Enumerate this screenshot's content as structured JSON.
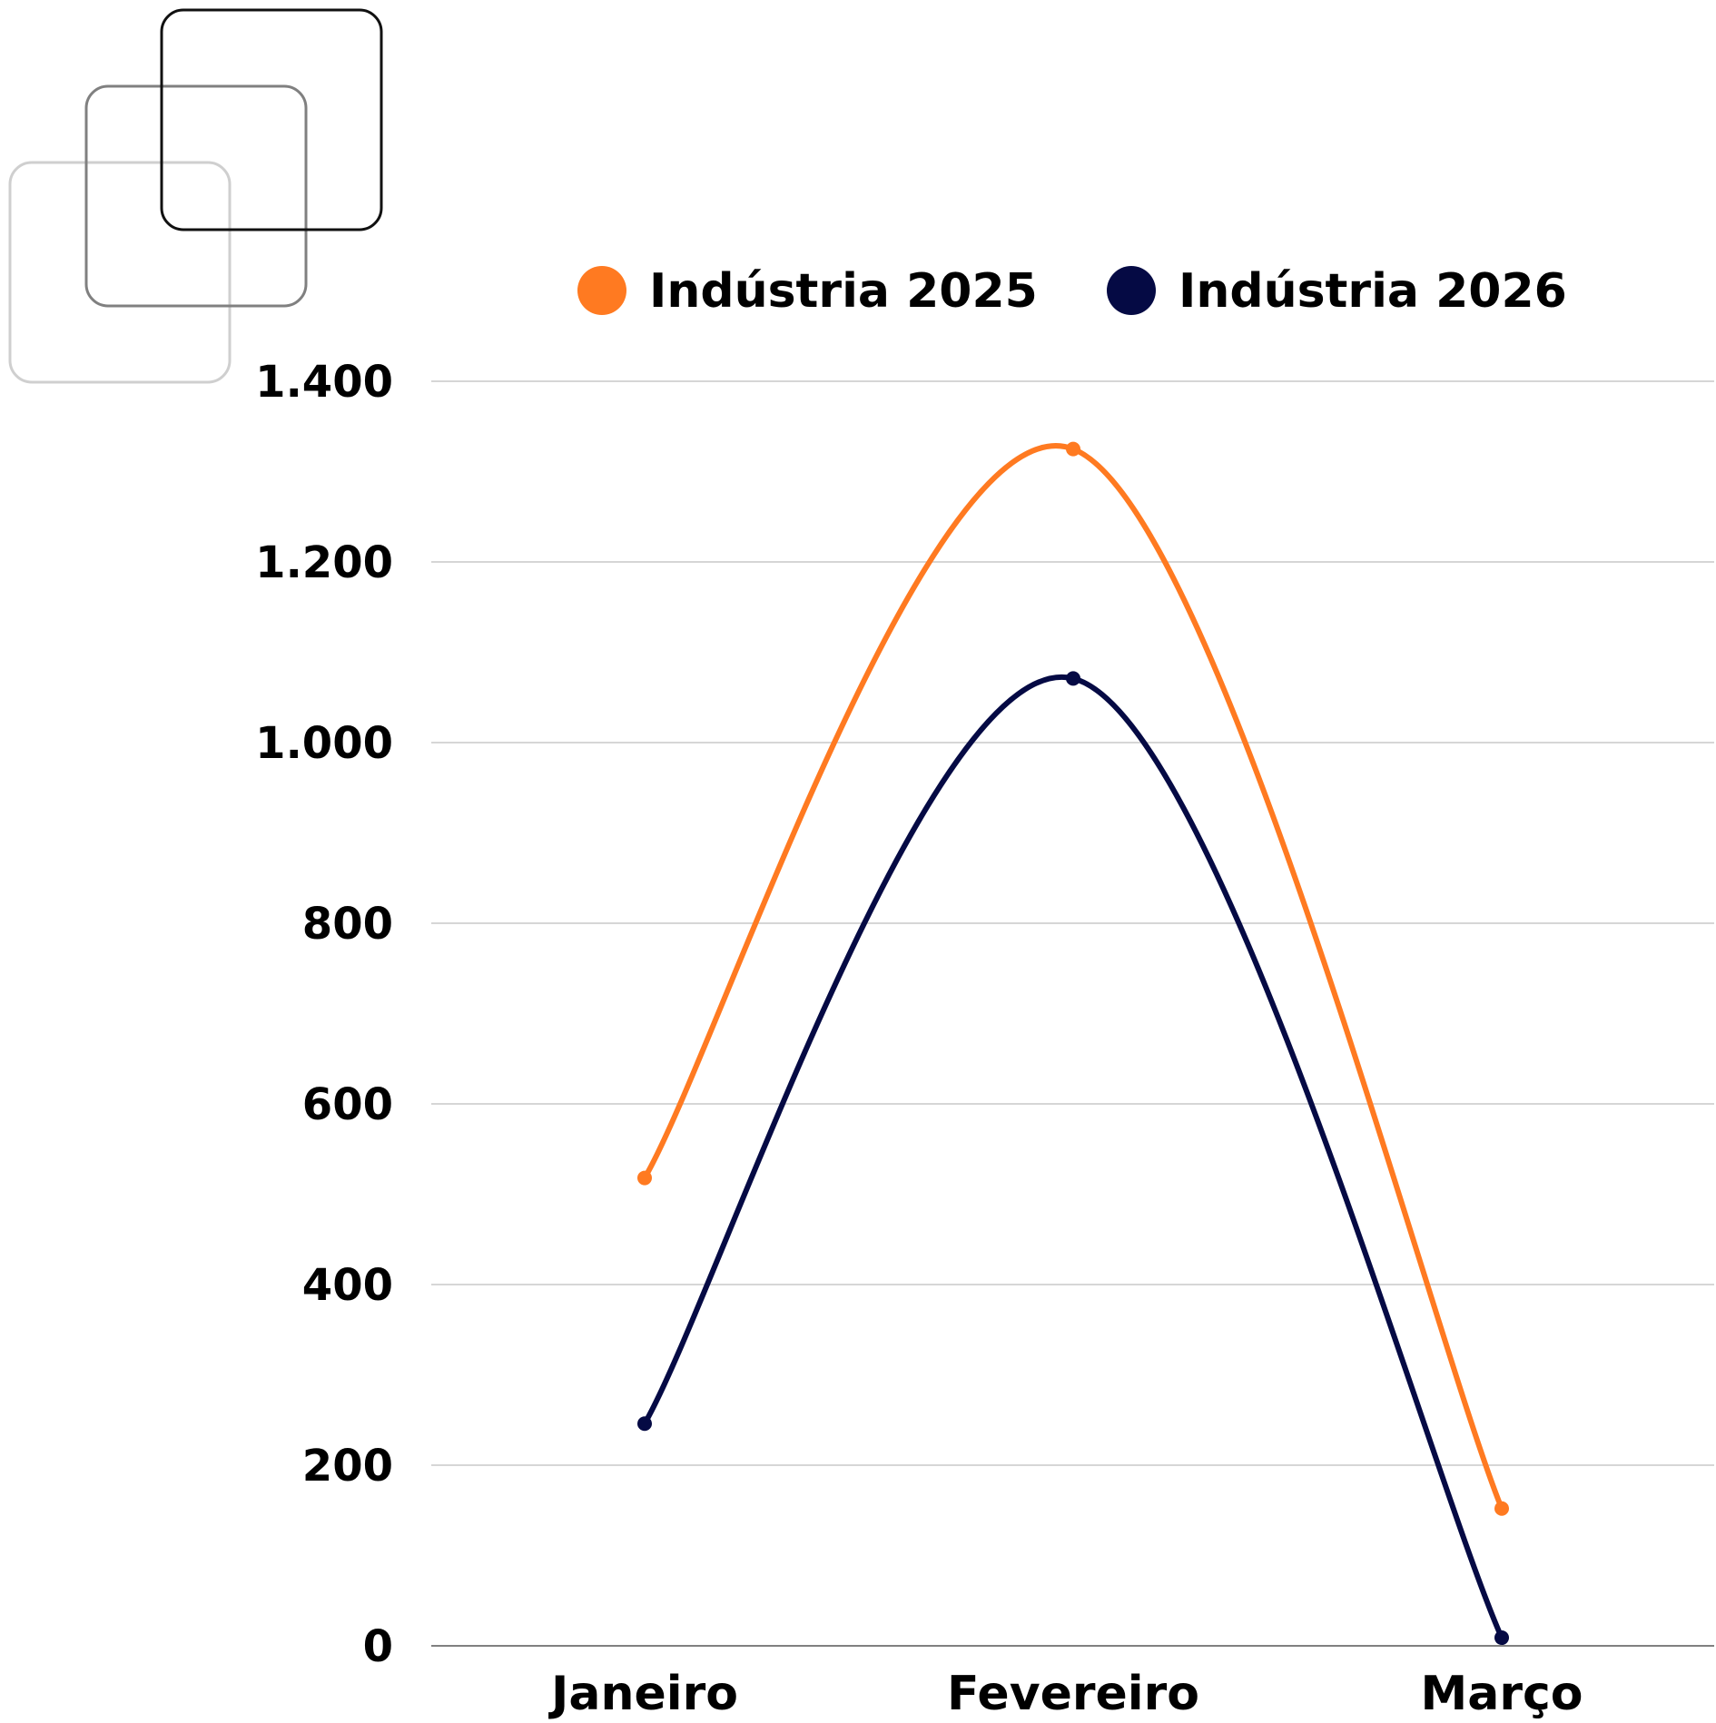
{
  "chart_data": {
    "type": "line",
    "categories": [
      "Janeiro",
      "Fevereiro",
      "Março"
    ],
    "series": [
      {
        "name": "Indústria 2025",
        "color": "#FF7A21",
        "values": [
          518,
          1325,
          152
        ]
      },
      {
        "name": "Indústria 2026",
        "color": "#050A44",
        "values": [
          246,
          1071,
          9
        ]
      }
    ],
    "y_ticks": [
      {
        "value": 0,
        "label": "0"
      },
      {
        "value": 200,
        "label": "200"
      },
      {
        "value": 400,
        "label": "400"
      },
      {
        "value": 600,
        "label": "600"
      },
      {
        "value": 800,
        "label": "800"
      },
      {
        "value": 1000,
        "label": "1.000"
      },
      {
        "value": 1200,
        "label": "1.200"
      },
      {
        "value": 1400,
        "label": "1.400"
      }
    ],
    "ylim": [
      0,
      1400
    ],
    "grid": true,
    "smooth": true,
    "legend_position": "top-center",
    "gridline_color": "#C8C8C8",
    "axis_line_color": "#808080"
  },
  "decoration": {
    "name": "overlapping-rounded-squares",
    "colors": [
      "#CFCFCF",
      "#808080",
      "#111111"
    ]
  }
}
